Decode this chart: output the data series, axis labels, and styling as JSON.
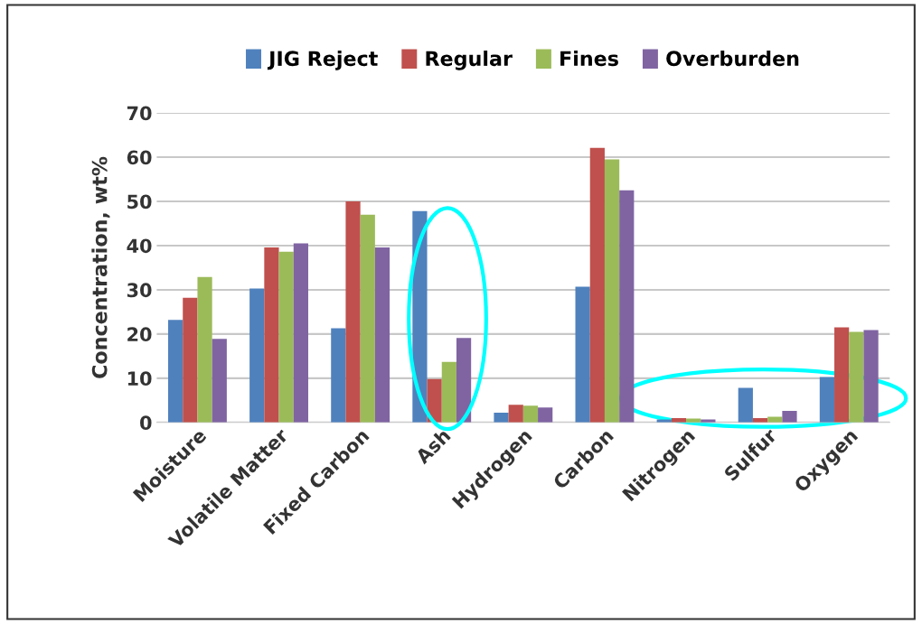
{
  "chart_data": {
    "type": "bar",
    "ylabel": "Concentration, wt%",
    "categories": [
      "Moisture",
      "Volatile Matter",
      "Fixed Carbon",
      "Ash",
      "Hydrogen",
      "Carbon",
      "Nitrogen",
      "Sulfur",
      "Oxygen"
    ],
    "series": [
      {
        "name": "JIG Reject",
        "color": "#4f81bd",
        "values": [
          23.2,
          30.3,
          21.3,
          47.8,
          2.2,
          30.7,
          0.7,
          7.8,
          10.3
        ]
      },
      {
        "name": "Regular",
        "color": "#c0504d",
        "values": [
          28.2,
          39.6,
          50,
          9.8,
          4.0,
          62.1,
          1.0,
          1.0,
          21.5
        ]
      },
      {
        "name": "Fines",
        "color": "#9bbb59",
        "values": [
          32.9,
          38.6,
          47,
          13.7,
          3.8,
          59.5,
          0.9,
          1.3,
          20.5
        ]
      },
      {
        "name": "Overburden",
        "color": "#8064a2",
        "values": [
          18.9,
          40.5,
          39.6,
          19.1,
          3.4,
          52.5,
          0.7,
          2.6,
          20.9
        ]
      }
    ],
    "ylim": [
      0,
      70
    ],
    "yticks": [
      0,
      10,
      20,
      30,
      40,
      50,
      60,
      70
    ],
    "grid": "y",
    "legend": "top"
  }
}
